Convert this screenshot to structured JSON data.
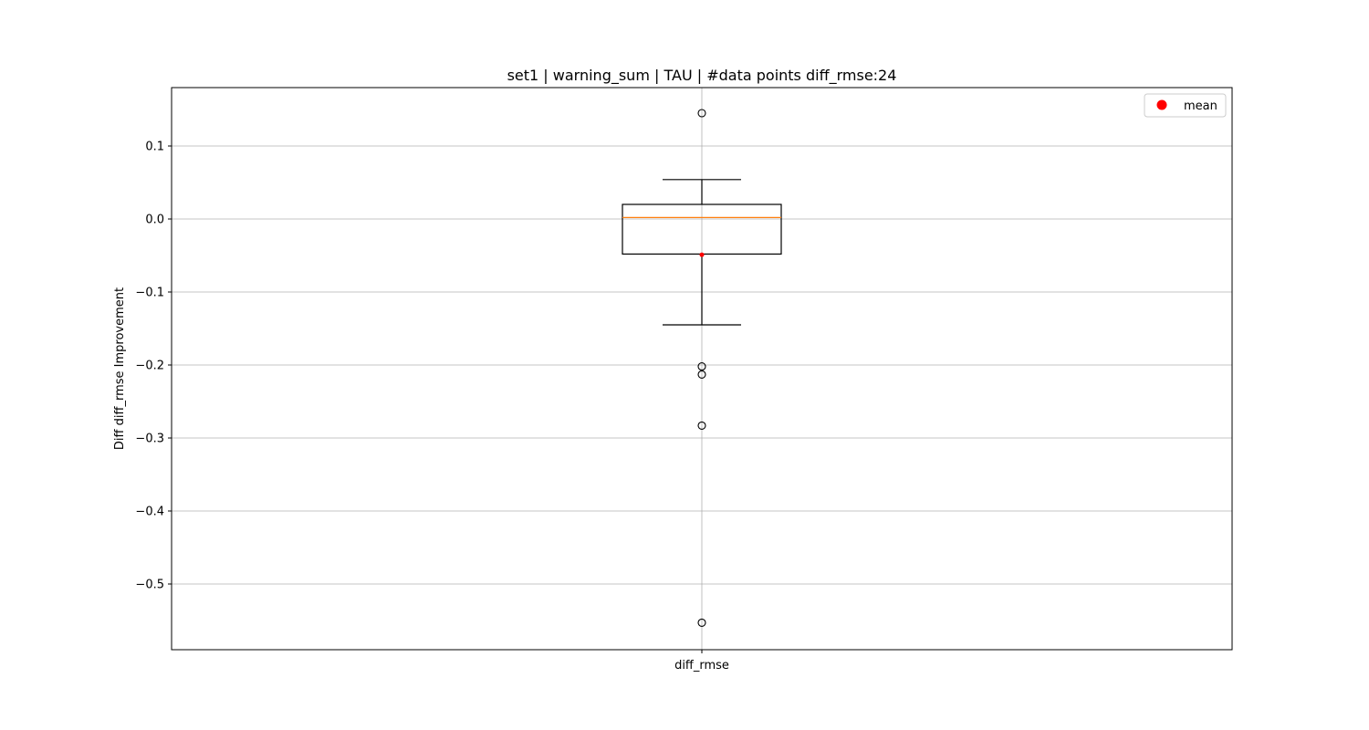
{
  "chart_data": {
    "type": "box",
    "title": "set1 | warning_sum | TAU | #data points diff_rmse:24",
    "xlabel": "",
    "ylabel": "Diff diff_rmse Improvement",
    "categories": [
      "diff_rmse"
    ],
    "ylim": [
      -0.59,
      0.18
    ],
    "yticks": [
      0.1,
      0.0,
      -0.1,
      -0.2,
      -0.3,
      -0.4,
      -0.5
    ],
    "ytick_labels": [
      "0.1",
      "0.0",
      "−0.1",
      "−0.2",
      "−0.3",
      "−0.4",
      "−0.5"
    ],
    "grid": true,
    "legend": {
      "position": "top-right",
      "entries": [
        {
          "label": "mean",
          "color": "#ff0000",
          "marker": "circle"
        }
      ]
    },
    "boxes": [
      {
        "name": "diff_rmse",
        "whisker_low": -0.145,
        "q1": -0.048,
        "median": 0.002,
        "q3": 0.02,
        "whisker_high": 0.054,
        "mean": -0.049,
        "outliers": [
          0.145,
          -0.202,
          -0.213,
          -0.283,
          -0.553
        ]
      }
    ],
    "colors": {
      "box": "#000000",
      "median": "#ff7f0e",
      "mean": "#ff0000",
      "grid": "#b0b0b0"
    }
  }
}
